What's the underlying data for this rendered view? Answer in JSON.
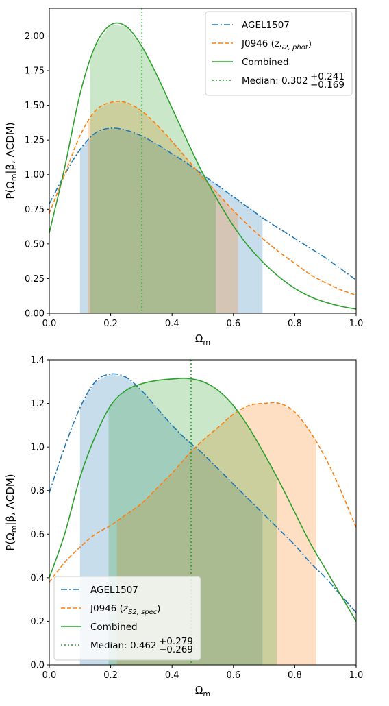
{
  "chart_data": [
    {
      "type": "line",
      "panel": "top",
      "xlabel": "Ω",
      "xlabel_sub": "m",
      "ylabel": "P(Ω",
      "ylabel_sub": "m",
      "ylabel_rest": "|β, ΛCDM)",
      "xlim": [
        0.0,
        1.0
      ],
      "ylim": [
        0.0,
        2.2
      ],
      "xticks": [
        "0.0",
        "0.2",
        "0.4",
        "0.6",
        "0.8",
        "1.0"
      ],
      "yticks": [
        "0.00",
        "0.25",
        "0.50",
        "0.75",
        "1.00",
        "1.25",
        "1.50",
        "1.75",
        "2.00"
      ],
      "legend_position": "top-right",
      "median": 0.302,
      "legend": {
        "agel": "AGEL1507",
        "j0946_prefix": "J0946 (",
        "j0946_z": "z",
        "j0946_sub": "S2, phot",
        "j0946_suffix": ")",
        "combined": "Combined",
        "median_prefix": "Median: 0.302",
        "median_sup": "+0.241",
        "median_sub": "−0.169"
      },
      "series": [
        {
          "name": "AGEL1507",
          "color": "#1f77b4",
          "linestyle": "dashdot",
          "shade": [
            0.1,
            0.695
          ],
          "x": [
            0.0,
            0.05,
            0.1,
            0.15,
            0.2,
            0.25,
            0.3,
            0.35,
            0.4,
            0.45,
            0.5,
            0.55,
            0.6,
            0.65,
            0.7,
            0.75,
            0.8,
            0.85,
            0.9,
            0.95,
            1.0
          ],
          "y": [
            0.79,
            1.0,
            1.18,
            1.3,
            1.335,
            1.32,
            1.28,
            1.22,
            1.15,
            1.08,
            1.0,
            0.92,
            0.84,
            0.76,
            0.68,
            0.61,
            0.54,
            0.47,
            0.4,
            0.32,
            0.24
          ]
        },
        {
          "name": "J0946 (zS2, phot)",
          "color": "#ff7f0e",
          "linestyle": "dashed",
          "shade": [
            0.125,
            0.615
          ],
          "x": [
            0.0,
            0.05,
            0.1,
            0.15,
            0.2,
            0.25,
            0.3,
            0.35,
            0.4,
            0.45,
            0.5,
            0.55,
            0.6,
            0.65,
            0.7,
            0.75,
            0.8,
            0.85,
            0.9,
            0.95,
            1.0
          ],
          "y": [
            0.72,
            1.0,
            1.28,
            1.46,
            1.52,
            1.52,
            1.46,
            1.36,
            1.24,
            1.11,
            0.98,
            0.86,
            0.74,
            0.63,
            0.53,
            0.44,
            0.36,
            0.28,
            0.22,
            0.17,
            0.13
          ]
        },
        {
          "name": "Combined",
          "color": "#2ca02c",
          "linestyle": "solid",
          "shade": [
            0.133,
            0.543
          ],
          "x": [
            0.0,
            0.05,
            0.1,
            0.15,
            0.2,
            0.25,
            0.3,
            0.35,
            0.4,
            0.45,
            0.5,
            0.55,
            0.6,
            0.65,
            0.7,
            0.75,
            0.8,
            0.85,
            0.9,
            0.95,
            1.0
          ],
          "y": [
            0.58,
            1.05,
            1.58,
            1.93,
            2.08,
            2.07,
            1.93,
            1.72,
            1.48,
            1.24,
            1.01,
            0.81,
            0.63,
            0.48,
            0.36,
            0.26,
            0.18,
            0.12,
            0.08,
            0.05,
            0.03
          ]
        }
      ]
    },
    {
      "type": "line",
      "panel": "bottom",
      "xlabel": "Ω",
      "xlabel_sub": "m",
      "ylabel": "P(Ω",
      "ylabel_sub": "m",
      "ylabel_rest": "|β, ΛCDM)",
      "xlim": [
        0.0,
        1.0
      ],
      "ylim": [
        0.0,
        1.4
      ],
      "xticks": [
        "0.0",
        "0.2",
        "0.4",
        "0.6",
        "0.8",
        "1.0"
      ],
      "yticks": [
        "0.0",
        "0.2",
        "0.4",
        "0.6",
        "0.8",
        "1.0",
        "1.2",
        "1.4"
      ],
      "legend_position": "bottom-left",
      "median": 0.462,
      "legend": {
        "agel": "AGEL1507",
        "j0946_prefix": "J0946 (",
        "j0946_z": "z",
        "j0946_sub": "S2, spec",
        "j0946_suffix": ")",
        "combined": "Combined",
        "median_prefix": "Median: 0.462",
        "median_sup": "+0.279",
        "median_sub": "−0.269"
      },
      "series": [
        {
          "name": "AGEL1507",
          "color": "#1f77b4",
          "linestyle": "dashdot",
          "shade": [
            0.1,
            0.695
          ],
          "x": [
            0.0,
            0.05,
            0.1,
            0.15,
            0.2,
            0.25,
            0.3,
            0.35,
            0.4,
            0.45,
            0.5,
            0.55,
            0.6,
            0.65,
            0.7,
            0.75,
            0.8,
            0.85,
            0.9,
            0.95,
            1.0
          ],
          "y": [
            0.79,
            1.0,
            1.18,
            1.3,
            1.335,
            1.32,
            1.26,
            1.18,
            1.1,
            1.03,
            0.97,
            0.9,
            0.83,
            0.76,
            0.69,
            0.62,
            0.55,
            0.47,
            0.4,
            0.32,
            0.24
          ]
        },
        {
          "name": "J0946 (zS2, spec)",
          "color": "#ff7f0e",
          "linestyle": "dashed",
          "shade": [
            0.22,
            0.87
          ],
          "x": [
            0.0,
            0.05,
            0.1,
            0.15,
            0.2,
            0.25,
            0.3,
            0.35,
            0.4,
            0.45,
            0.5,
            0.55,
            0.6,
            0.65,
            0.7,
            0.75,
            0.8,
            0.85,
            0.9,
            0.95,
            1.0
          ],
          "y": [
            0.38,
            0.47,
            0.54,
            0.6,
            0.64,
            0.69,
            0.74,
            0.81,
            0.88,
            0.96,
            1.03,
            1.09,
            1.15,
            1.19,
            1.2,
            1.2,
            1.16,
            1.07,
            0.95,
            0.8,
            0.63
          ]
        },
        {
          "name": "Combined",
          "color": "#2ca02c",
          "linestyle": "solid",
          "shade": [
            0.193,
            0.741
          ],
          "x": [
            0.0,
            0.05,
            0.1,
            0.15,
            0.2,
            0.25,
            0.3,
            0.35,
            0.4,
            0.45,
            0.5,
            0.55,
            0.6,
            0.65,
            0.7,
            0.75,
            0.8,
            0.85,
            0.9,
            0.95,
            1.0
          ],
          "y": [
            0.4,
            0.6,
            0.86,
            1.05,
            1.19,
            1.26,
            1.29,
            1.305,
            1.312,
            1.315,
            1.3,
            1.26,
            1.19,
            1.09,
            0.97,
            0.84,
            0.7,
            0.56,
            0.44,
            0.32,
            0.2
          ]
        }
      ]
    }
  ]
}
